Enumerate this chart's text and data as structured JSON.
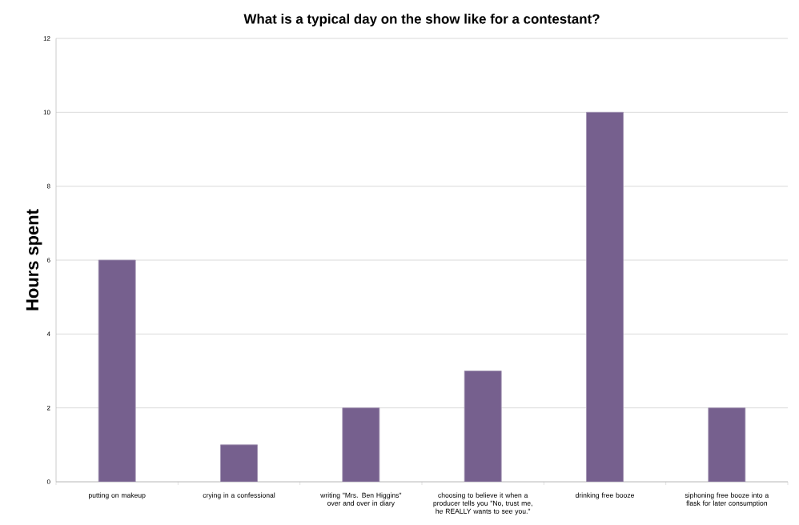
{
  "chart_data": {
    "type": "bar",
    "title": "What is a typical day on the show like for a contestant?",
    "ylabel": "Hours spent",
    "categories": [
      "putting on makeup",
      "crying in a confessional",
      "writing \"Mrs. Ben Higgins\" over and over in diary",
      "choosing to believe it when a producer tells you \"No, trust me, he REALLY wants to see you.\"",
      "drinking free booze",
      "siphoning free booze into a flask for later consumption"
    ],
    "values": [
      6,
      1,
      2,
      3,
      10,
      2
    ],
    "color": "#76608e",
    "ylim": [
      0,
      12
    ],
    "yticks": [
      0,
      2,
      4,
      6,
      8,
      10,
      12
    ],
    "grid": "y"
  }
}
